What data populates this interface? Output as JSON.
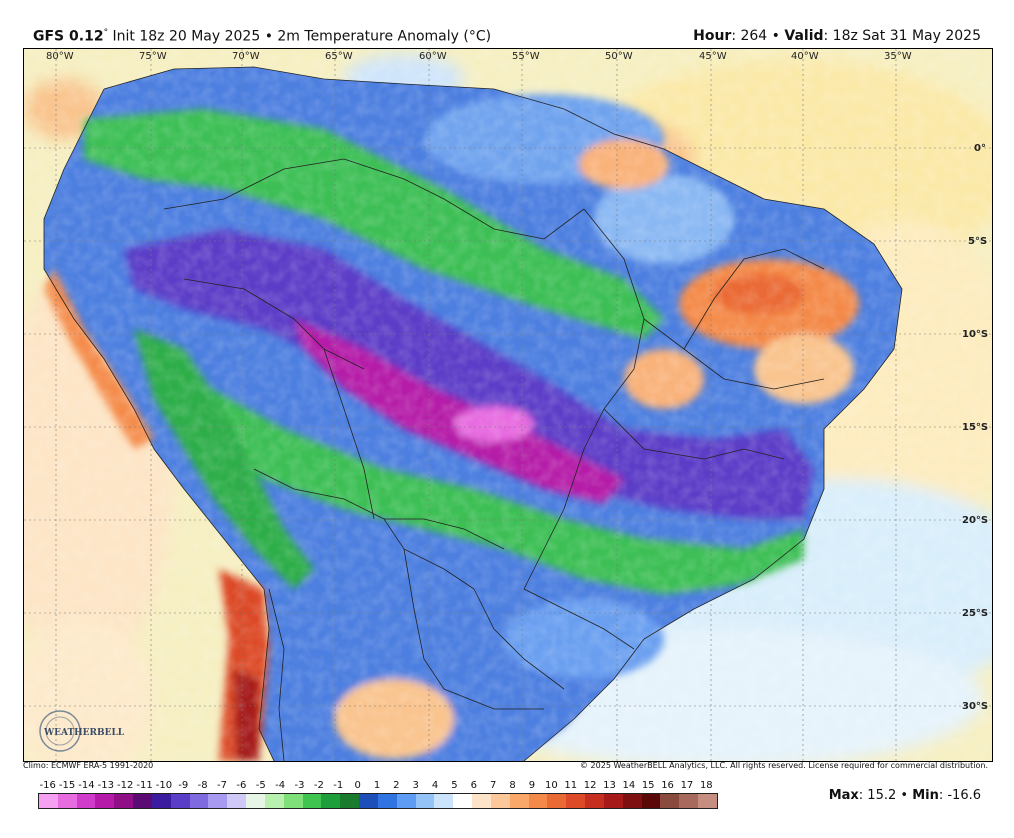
{
  "header": {
    "model": "GFS 0.12",
    "degree": "°",
    "init": " Init 18z 20 May 2025 • 2m Temperature Anomaly (°C)",
    "hour_label": "Hour",
    "hour_value": ": 264 • ",
    "valid_label": "Valid",
    "valid_value": ": 18z Sat 31 May 2025"
  },
  "map": {
    "lon_labels": [
      "80°W",
      "75°W",
      "70°W",
      "65°W",
      "60°W",
      "55°W",
      "50°W",
      "45°W",
      "40°W",
      "35°W"
    ],
    "lat_labels": [
      "0°",
      "5°S",
      "10°S",
      "15°S",
      "20°S",
      "25°S",
      "30°S"
    ],
    "logo_text": "WEATHERBELL"
  },
  "footer": {
    "climo": "Climo: ECMWF ERA-5 1991-2020",
    "copyright": "© 2025 WeatherBELL Analytics, LLC. All rights reserved. License required for commercial distribution."
  },
  "colorbar": {
    "ticks": [
      "-16",
      "-15",
      "-14",
      "-13",
      "-12",
      "-11",
      "-10",
      "-9",
      "-8",
      "-7",
      "-6",
      "-5",
      "-4",
      "-3",
      "-2",
      "-1",
      "0",
      "1",
      "2",
      "3",
      "4",
      "5",
      "6",
      "7",
      "8",
      "9",
      "10",
      "11",
      "12",
      "13",
      "14",
      "15",
      "16",
      "17",
      "18"
    ],
    "colors": [
      "#f5a0f0",
      "#e76ce0",
      "#d23ccb",
      "#b51aa8",
      "#8e0f86",
      "#5a0b74",
      "#3b1b9e",
      "#5b3ec7",
      "#7f6ae0",
      "#a79af0",
      "#cfc9f7",
      "#e6f5e6",
      "#b8f0b0",
      "#7fe07a",
      "#3fc450",
      "#1f9e3c",
      "#1a7a2e",
      "#1e4fb8",
      "#2f74e0",
      "#5d9cf2",
      "#94c3f8",
      "#cbe3fb",
      "#ffffff",
      "#fde3c8",
      "#fcc79a",
      "#f9a86a",
      "#f48a4a",
      "#ea6a36",
      "#dc4a28",
      "#c62f20",
      "#a61b1a",
      "#7e1012",
      "#5b0808",
      "#8a4a3e",
      "#a86a5c",
      "#c68e80"
    ]
  },
  "stats": {
    "max_label": "Max",
    "max_value": ": 15.2 • ",
    "min_label": "Min",
    "min_value": ": -16.6"
  }
}
